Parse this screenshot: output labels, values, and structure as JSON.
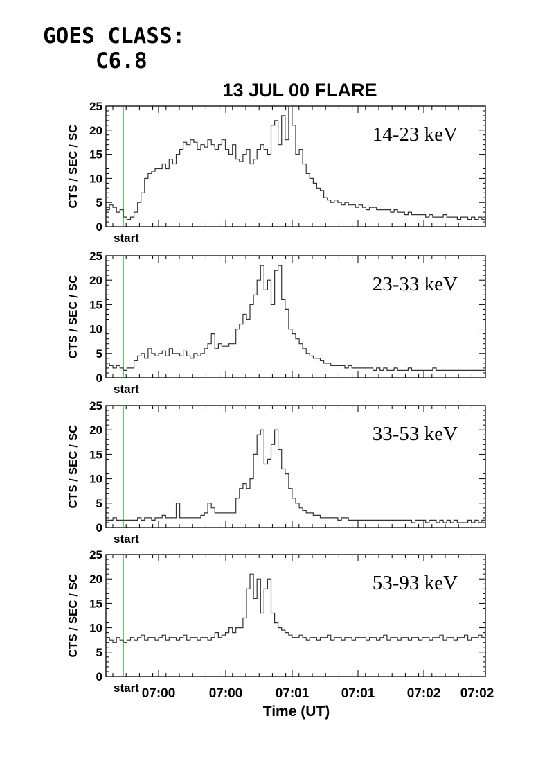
{
  "header": {
    "goes_line1": "GOES CLASS:",
    "goes_line2": "C6.8"
  },
  "chart_data": {
    "type": "line",
    "title": "13 JUL 00 FLARE",
    "ylabel": "CTS / SEC / SC",
    "xlabel": "Time (UT)",
    "x_tick_labels": [
      "07:00",
      "07:00",
      "07:01",
      "07:01",
      "07:02",
      "07:02"
    ],
    "y_ticks": [
      0,
      5,
      10,
      15,
      20,
      25
    ],
    "ylim": [
      0,
      25
    ],
    "marker_label": "start",
    "marker_color": "#00b000",
    "line_color": "#333333",
    "panels": [
      {
        "name": "14-23 keV",
        "x": [
          0,
          5,
          10,
          15,
          20,
          25,
          30,
          35,
          40,
          45,
          50,
          55,
          60,
          65,
          70,
          75,
          80,
          85,
          90,
          95,
          100,
          105,
          110,
          115,
          120,
          125,
          130,
          135,
          140,
          145,
          150,
          155,
          160,
          165,
          170,
          175,
          180,
          185,
          190,
          195,
          200,
          205,
          210,
          215,
          220,
          225,
          230,
          235,
          240,
          245,
          250,
          255,
          260,
          265,
          270,
          275,
          280,
          285,
          290,
          295,
          300,
          305,
          310,
          315,
          320,
          325,
          330,
          335,
          340,
          345,
          350,
          355,
          360,
          365,
          370,
          375,
          380,
          385,
          390,
          395,
          400,
          405,
          410,
          415,
          420,
          425,
          430,
          435,
          440,
          445,
          450,
          455,
          460,
          465,
          470,
          475,
          480,
          485,
          490,
          495,
          500,
          505,
          510,
          515,
          520,
          525,
          530,
          535,
          540
        ],
        "values": [
          3.5,
          4.5,
          4,
          3,
          3.5,
          2,
          1.5,
          2,
          3,
          5,
          7,
          10,
          11,
          11.5,
          12,
          12,
          13,
          12,
          14,
          13,
          15,
          16,
          17.5,
          17,
          18,
          17.5,
          16,
          17,
          16.5,
          18,
          17,
          16,
          17,
          18,
          16,
          15,
          17,
          14,
          13.5,
          15,
          16,
          13,
          14,
          16,
          17,
          16,
          15,
          21,
          22,
          17,
          23,
          18,
          25,
          21,
          15,
          16,
          13,
          11,
          10,
          9,
          8,
          7.5,
          6,
          5.5,
          5,
          5.5,
          5,
          4.5,
          5,
          4.5,
          4.5,
          4,
          4.5,
          4,
          3.5,
          4,
          4,
          3.5,
          3.5,
          3.5,
          3.5,
          3,
          3.5,
          3,
          3,
          2.5,
          3,
          2.5,
          2.5,
          2.5,
          2.5,
          2,
          2.5,
          2,
          2,
          2,
          2.5,
          2,
          2,
          2,
          1.5,
          2,
          2,
          1.5,
          2,
          1.5,
          2,
          1.5,
          1.5
        ]
      },
      {
        "name": "23-33 keV",
        "x": [
          0,
          5,
          10,
          15,
          20,
          25,
          30,
          35,
          40,
          45,
          50,
          55,
          60,
          65,
          70,
          75,
          80,
          85,
          90,
          95,
          100,
          105,
          110,
          115,
          120,
          125,
          130,
          135,
          140,
          145,
          150,
          155,
          160,
          165,
          170,
          175,
          180,
          185,
          190,
          195,
          200,
          205,
          210,
          215,
          220,
          225,
          230,
          235,
          240,
          245,
          250,
          255,
          260,
          265,
          270,
          275,
          280,
          285,
          290,
          295,
          300,
          305,
          310,
          315,
          320,
          325,
          330,
          335,
          340,
          345,
          350,
          355,
          360,
          365,
          370,
          375,
          380,
          385,
          390,
          395,
          400,
          405,
          410,
          415,
          420,
          425,
          430,
          435,
          440,
          445,
          450,
          455,
          460,
          465,
          470,
          475,
          480,
          485,
          490,
          495,
          500,
          505,
          510,
          515,
          520,
          525,
          530,
          535,
          540
        ],
        "values": [
          3,
          2.5,
          2,
          2.5,
          2,
          1.5,
          2,
          2,
          3.5,
          4.5,
          5,
          4,
          6,
          5,
          4.5,
          5,
          5.5,
          4.5,
          6,
          5,
          5,
          4.5,
          5.5,
          4.5,
          4,
          5,
          4.5,
          5,
          6,
          7,
          9,
          6,
          7,
          6.5,
          6.5,
          7,
          7,
          10,
          11,
          13,
          12,
          15,
          17,
          20,
          23,
          18,
          20,
          15,
          22,
          23,
          16,
          14,
          10,
          9,
          8,
          7,
          6,
          5,
          4.5,
          4,
          4,
          3.5,
          3,
          3,
          2.5,
          2.5,
          2.5,
          2.5,
          2,
          2.5,
          2,
          2,
          2,
          2,
          2,
          2,
          1.5,
          2,
          1.5,
          2,
          1.5,
          1.5,
          2,
          1.5,
          1.5,
          1.5,
          2,
          1.5,
          1.5,
          1.5,
          1.5,
          1.5,
          1.5,
          2,
          1.5,
          1.5,
          1.5,
          1.5,
          1.5,
          1.5,
          1.5,
          1.5,
          1.5,
          1.5,
          1.5,
          1.5,
          1.5,
          1.5,
          2
        ]
      },
      {
        "name": "33-53 keV",
        "x": [
          0,
          5,
          10,
          15,
          20,
          25,
          30,
          35,
          40,
          45,
          50,
          55,
          60,
          65,
          70,
          75,
          80,
          85,
          90,
          95,
          100,
          105,
          110,
          115,
          120,
          125,
          130,
          135,
          140,
          145,
          150,
          155,
          160,
          165,
          170,
          175,
          180,
          185,
          190,
          195,
          200,
          205,
          210,
          215,
          220,
          225,
          230,
          235,
          240,
          245,
          250,
          255,
          260,
          265,
          270,
          275,
          280,
          285,
          290,
          295,
          300,
          305,
          310,
          315,
          320,
          325,
          330,
          335,
          340,
          345,
          350,
          355,
          360,
          365,
          370,
          375,
          380,
          385,
          390,
          395,
          400,
          405,
          410,
          415,
          420,
          425,
          430,
          435,
          440,
          445,
          450,
          455,
          460,
          465,
          470,
          475,
          480,
          485,
          490,
          495,
          500,
          505,
          510,
          515,
          520,
          525,
          530,
          535,
          540
        ],
        "values": [
          1.5,
          1.5,
          2,
          1.5,
          1.5,
          1.5,
          1.5,
          1.5,
          1.5,
          2,
          1.5,
          2,
          2,
          1.5,
          2,
          2,
          2.5,
          2,
          2,
          2,
          5,
          2,
          2,
          2,
          2,
          2,
          2,
          2.5,
          3,
          5,
          4,
          3,
          3,
          3,
          3,
          3,
          3,
          6,
          8,
          9,
          8,
          10,
          15,
          19,
          20,
          13,
          14,
          17,
          20,
          16,
          12,
          11,
          8,
          6,
          5,
          4,
          3.5,
          3,
          3,
          2.5,
          2.5,
          2,
          2,
          2,
          2,
          2,
          1.5,
          2,
          2,
          1.5,
          1.5,
          1.5,
          1.5,
          1.5,
          1.5,
          1.5,
          1.5,
          1.5,
          1.5,
          1.5,
          1.5,
          1.5,
          1.5,
          1.5,
          1.5,
          1.5,
          1.5,
          1,
          1.5,
          1.5,
          1.5,
          1,
          1.5,
          1.5,
          1,
          1.5,
          1,
          1.5,
          1,
          1.5,
          1,
          1,
          1,
          1.5,
          1,
          1.5,
          1,
          1.5,
          1
        ]
      },
      {
        "name": "53-93 keV",
        "x": [
          0,
          5,
          10,
          15,
          20,
          25,
          30,
          35,
          40,
          45,
          50,
          55,
          60,
          65,
          70,
          75,
          80,
          85,
          90,
          95,
          100,
          105,
          110,
          115,
          120,
          125,
          130,
          135,
          140,
          145,
          150,
          155,
          160,
          165,
          170,
          175,
          180,
          185,
          190,
          195,
          200,
          205,
          210,
          215,
          220,
          225,
          230,
          235,
          240,
          245,
          250,
          255,
          260,
          265,
          270,
          275,
          280,
          285,
          290,
          295,
          300,
          305,
          310,
          315,
          320,
          325,
          330,
          335,
          340,
          345,
          350,
          355,
          360,
          365,
          370,
          375,
          380,
          385,
          390,
          395,
          400,
          405,
          410,
          415,
          420,
          425,
          430,
          435,
          440,
          445,
          450,
          455,
          460,
          465,
          470,
          475,
          480,
          485,
          490,
          495,
          500,
          505,
          510,
          515,
          520,
          525,
          530,
          535,
          540
        ],
        "values": [
          8,
          7.5,
          7,
          8,
          7.5,
          7,
          7.5,
          8,
          7.5,
          8,
          8.5,
          7.5,
          8,
          8,
          7.5,
          8,
          8.5,
          7.5,
          8,
          8,
          7.5,
          8,
          8.5,
          7.5,
          8,
          8,
          7.5,
          8,
          8,
          7.5,
          8,
          9,
          8,
          8.5,
          9,
          10,
          9,
          10,
          10,
          12,
          18,
          21,
          16,
          20,
          13,
          18,
          20,
          13,
          11,
          10,
          9.5,
          9,
          8.5,
          8,
          8,
          8.5,
          8,
          7.5,
          8,
          8,
          7.5,
          8,
          8,
          8.5,
          7.5,
          8,
          8,
          7.5,
          8,
          8,
          7.5,
          8,
          8,
          8,
          7.5,
          8,
          8,
          7.5,
          8,
          8.5,
          7.5,
          8,
          8,
          7.5,
          8,
          8,
          7.5,
          8,
          8,
          7.5,
          8,
          8,
          7.5,
          8,
          8,
          8.5,
          7.5,
          8,
          8,
          7.5,
          8,
          8,
          8.5,
          7.5,
          8,
          8,
          8.5,
          8,
          8
        ]
      }
    ]
  }
}
